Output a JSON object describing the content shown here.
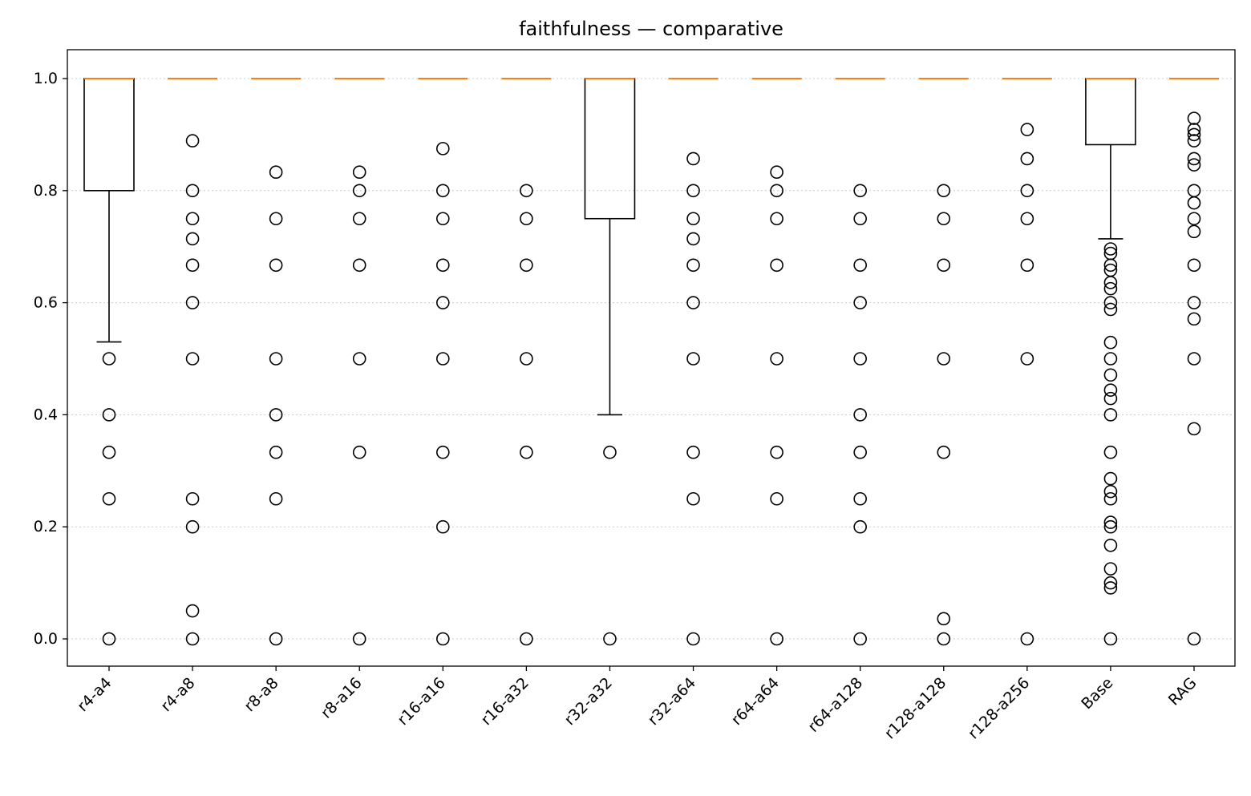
{
  "chart_data": {
    "type": "boxplot",
    "title": "faithfulness — comparative",
    "xlabel": "",
    "ylabel": "",
    "ylim": [
      -0.05,
      1.05
    ],
    "yticks": [
      0.0,
      0.2,
      0.4,
      0.6,
      0.8,
      1.0
    ],
    "ytick_labels": [
      "0.0",
      "0.2",
      "0.4",
      "0.6",
      "0.8",
      "1.0"
    ],
    "grid": "y-dotted",
    "colors": {
      "median": "#ff7f0e",
      "box": "#000000",
      "grid": "#cccccc"
    },
    "categories": [
      "r4-a4",
      "r4-a8",
      "r8-a8",
      "r8-a16",
      "r16-a16",
      "r16-a32",
      "r32-a32",
      "r32-a64",
      "r64-a64",
      "r64-a128",
      "r128-a128",
      "r128-a256",
      "Base",
      "RAG"
    ],
    "boxes": [
      {
        "q1": 0.8,
        "median": 1.0,
        "q3": 1.0,
        "whisker_low": 0.53,
        "whisker_high": 1.0,
        "outliers": [
          0.5,
          0.4,
          0.333,
          0.25,
          0.0
        ]
      },
      {
        "q1": 1.0,
        "median": 1.0,
        "q3": 1.0,
        "whisker_low": 1.0,
        "whisker_high": 1.0,
        "outliers": [
          0.889,
          0.8,
          0.75,
          0.714,
          0.667,
          0.6,
          0.5,
          0.25,
          0.2,
          0.05,
          0.0
        ]
      },
      {
        "q1": 1.0,
        "median": 1.0,
        "q3": 1.0,
        "whisker_low": 1.0,
        "whisker_high": 1.0,
        "outliers": [
          0.833,
          0.75,
          0.667,
          0.5,
          0.4,
          0.333,
          0.25,
          0.0
        ]
      },
      {
        "q1": 1.0,
        "median": 1.0,
        "q3": 1.0,
        "whisker_low": 1.0,
        "whisker_high": 1.0,
        "outliers": [
          0.833,
          0.8,
          0.75,
          0.667,
          0.5,
          0.333,
          0.0
        ]
      },
      {
        "q1": 1.0,
        "median": 1.0,
        "q3": 1.0,
        "whisker_low": 1.0,
        "whisker_high": 1.0,
        "outliers": [
          0.875,
          0.8,
          0.75,
          0.667,
          0.6,
          0.5,
          0.333,
          0.2,
          0.0
        ]
      },
      {
        "q1": 1.0,
        "median": 1.0,
        "q3": 1.0,
        "whisker_low": 1.0,
        "whisker_high": 1.0,
        "outliers": [
          0.8,
          0.75,
          0.667,
          0.5,
          0.333,
          0.0
        ]
      },
      {
        "q1": 0.75,
        "median": 1.0,
        "q3": 1.0,
        "whisker_low": 0.4,
        "whisker_high": 1.0,
        "outliers": [
          0.333,
          0.0
        ]
      },
      {
        "q1": 1.0,
        "median": 1.0,
        "q3": 1.0,
        "whisker_low": 1.0,
        "whisker_high": 1.0,
        "outliers": [
          0.857,
          0.8,
          0.75,
          0.714,
          0.667,
          0.6,
          0.5,
          0.333,
          0.25,
          0.0
        ]
      },
      {
        "q1": 1.0,
        "median": 1.0,
        "q3": 1.0,
        "whisker_low": 1.0,
        "whisker_high": 1.0,
        "outliers": [
          0.833,
          0.8,
          0.75,
          0.667,
          0.5,
          0.333,
          0.25,
          0.0
        ]
      },
      {
        "q1": 1.0,
        "median": 1.0,
        "q3": 1.0,
        "whisker_low": 1.0,
        "whisker_high": 1.0,
        "outliers": [
          0.8,
          0.75,
          0.667,
          0.6,
          0.5,
          0.4,
          0.333,
          0.25,
          0.2,
          0.0
        ]
      },
      {
        "q1": 1.0,
        "median": 1.0,
        "q3": 1.0,
        "whisker_low": 1.0,
        "whisker_high": 1.0,
        "outliers": [
          0.8,
          0.75,
          0.667,
          0.5,
          0.333,
          0.036,
          0.0
        ]
      },
      {
        "q1": 1.0,
        "median": 1.0,
        "q3": 1.0,
        "whisker_low": 1.0,
        "whisker_high": 1.0,
        "outliers": [
          0.909,
          0.857,
          0.8,
          0.75,
          0.667,
          0.5,
          0.0
        ]
      },
      {
        "q1": 0.882,
        "median": 1.0,
        "q3": 1.0,
        "whisker_low": 0.714,
        "whisker_high": 1.0,
        "outliers": [
          0.696,
          0.688,
          0.667,
          0.658,
          0.636,
          0.625,
          0.6,
          0.588,
          0.529,
          0.5,
          0.471,
          0.444,
          0.429,
          0.4,
          0.333,
          0.286,
          0.263,
          0.25,
          0.208,
          0.2,
          0.167,
          0.125,
          0.1,
          0.091,
          0.0
        ]
      },
      {
        "q1": 1.0,
        "median": 1.0,
        "q3": 1.0,
        "whisker_low": 1.0,
        "whisker_high": 1.0,
        "outliers": [
          0.929,
          0.909,
          0.9,
          0.889,
          0.857,
          0.846,
          0.8,
          0.778,
          0.75,
          0.727,
          0.667,
          0.6,
          0.571,
          0.5,
          0.375,
          0.0
        ]
      }
    ]
  }
}
